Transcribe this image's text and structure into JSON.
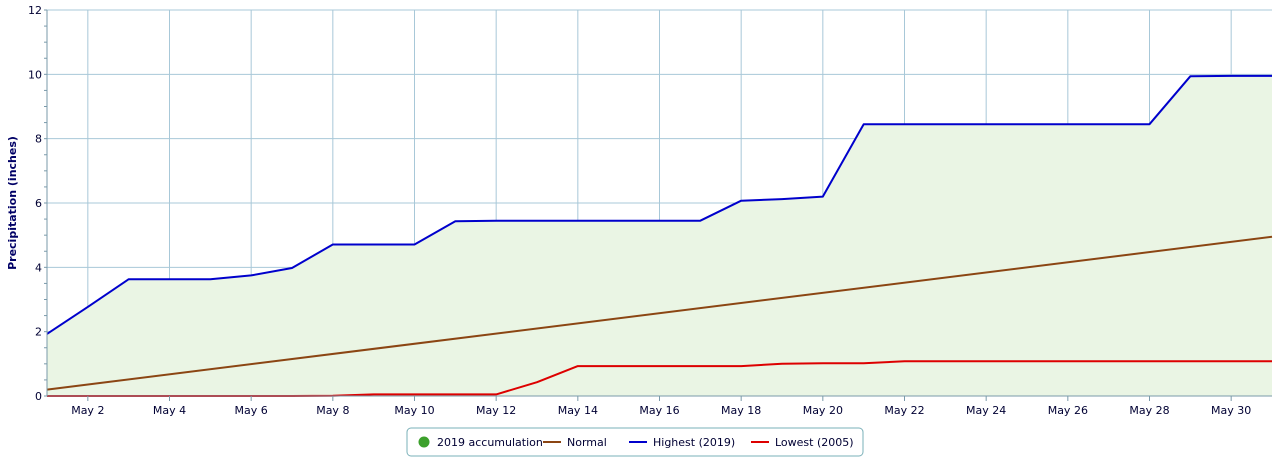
{
  "chart_data": {
    "type": "line",
    "ylabel": "Precipitation (inches)",
    "xlabel": "",
    "ylim": [
      0,
      12
    ],
    "yticks": [
      0,
      2,
      4,
      6,
      8,
      10,
      12
    ],
    "xlim": [
      1,
      31
    ],
    "xticks": [
      {
        "x": 2,
        "label": "May 2"
      },
      {
        "x": 4,
        "label": "May 4"
      },
      {
        "x": 6,
        "label": "May 6"
      },
      {
        "x": 8,
        "label": "May 8"
      },
      {
        "x": 10,
        "label": "May 10"
      },
      {
        "x": 12,
        "label": "May 12"
      },
      {
        "x": 14,
        "label": "May 14"
      },
      {
        "x": 16,
        "label": "May 16"
      },
      {
        "x": 18,
        "label": "May 18"
      },
      {
        "x": 20,
        "label": "May 20"
      },
      {
        "x": 22,
        "label": "May 22"
      },
      {
        "x": 24,
        "label": "May 24"
      },
      {
        "x": 26,
        "label": "May 26"
      },
      {
        "x": 28,
        "label": "May 28"
      },
      {
        "x": 30,
        "label": "May 30"
      }
    ],
    "grid": true,
    "legend_position": "bottom-center",
    "series": [
      {
        "name": "2019 accumulation",
        "kind": "area",
        "color": "#3ca02c",
        "fill": "#eaf5e4",
        "x": [
          1,
          2,
          3,
          4,
          5,
          6,
          7,
          8,
          9,
          10,
          11,
          12,
          13,
          14,
          15,
          16,
          17,
          18,
          19,
          20,
          21,
          22,
          23,
          24,
          25,
          26,
          27,
          28,
          29,
          30,
          31
        ],
        "values": [
          1.93,
          2.77,
          3.63,
          3.63,
          3.63,
          3.75,
          3.98,
          4.71,
          4.71,
          4.71,
          5.43,
          5.45,
          5.45,
          5.45,
          5.45,
          5.45,
          5.45,
          6.07,
          6.12,
          6.2,
          8.45,
          8.45,
          8.45,
          8.45,
          8.45,
          8.45,
          8.45,
          8.45,
          9.94,
          9.95,
          9.95
        ]
      },
      {
        "name": "Normal",
        "kind": "line",
        "color": "#8b4513",
        "x": [
          1,
          31
        ],
        "values": [
          0.2,
          4.95
        ]
      },
      {
        "name": "Highest (2019)",
        "kind": "line",
        "color": "#0000cc",
        "x": [
          1,
          2,
          3,
          4,
          5,
          6,
          7,
          8,
          9,
          10,
          11,
          12,
          13,
          14,
          15,
          16,
          17,
          18,
          19,
          20,
          21,
          22,
          23,
          24,
          25,
          26,
          27,
          28,
          29,
          30,
          31
        ],
        "values": [
          1.93,
          2.77,
          3.63,
          3.63,
          3.63,
          3.75,
          3.98,
          4.71,
          4.71,
          4.71,
          5.43,
          5.45,
          5.45,
          5.45,
          5.45,
          5.45,
          5.45,
          6.07,
          6.12,
          6.2,
          8.45,
          8.45,
          8.45,
          8.45,
          8.45,
          8.45,
          8.45,
          8.45,
          9.94,
          9.95,
          9.95
        ]
      },
      {
        "name": "Lowest (2005)",
        "kind": "line",
        "color": "#dd0000",
        "x": [
          1,
          2,
          3,
          4,
          5,
          6,
          7,
          8,
          9,
          10,
          11,
          12,
          13,
          14,
          15,
          16,
          17,
          18,
          19,
          20,
          21,
          22,
          23,
          24,
          25,
          26,
          27,
          28,
          29,
          30,
          31
        ],
        "values": [
          0,
          0,
          0,
          0,
          0,
          0,
          0,
          0.01,
          0.05,
          0.05,
          0.05,
          0.05,
          0.43,
          0.93,
          0.93,
          0.93,
          0.93,
          0.93,
          1.0,
          1.02,
          1.02,
          1.08,
          1.08,
          1.08,
          1.08,
          1.08,
          1.08,
          1.08,
          1.08,
          1.08,
          1.08
        ]
      }
    ]
  },
  "legend": {
    "items": [
      {
        "label": "2019 accumulation",
        "marker": "circle",
        "color": "#3ca02c"
      },
      {
        "label": "Normal",
        "marker": "line",
        "color": "#8b4513"
      },
      {
        "label": "Highest (2019)",
        "marker": "line",
        "color": "#0000cc"
      },
      {
        "label": "Lowest (2005)",
        "marker": "line",
        "color": "#dd0000"
      }
    ]
  }
}
